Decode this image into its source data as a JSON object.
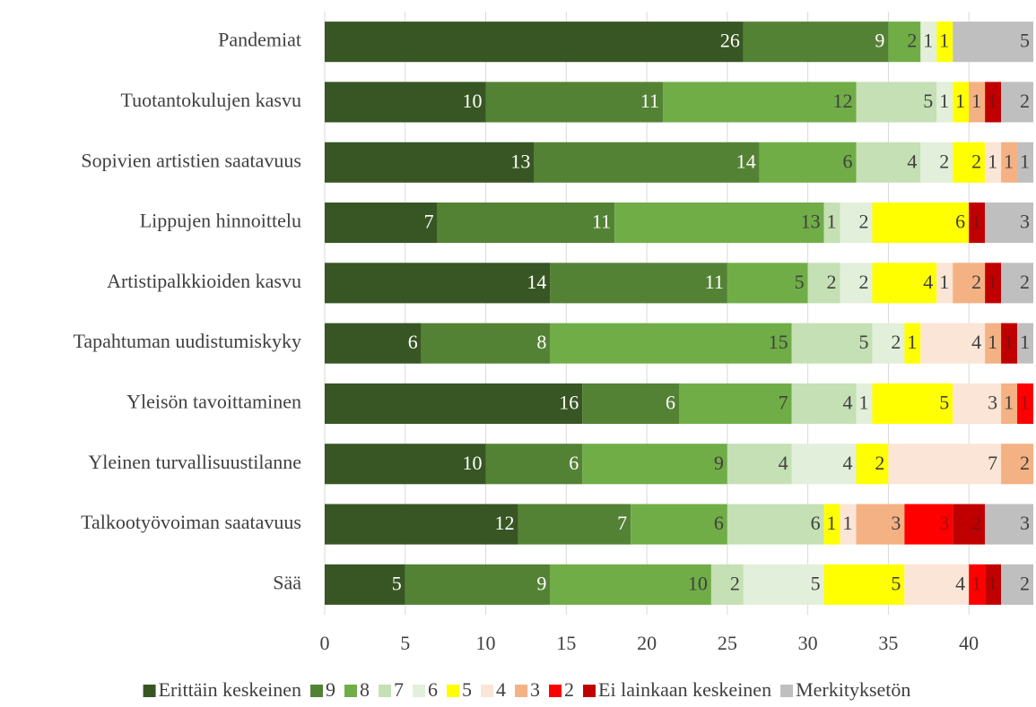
{
  "chart_data": {
    "type": "stacked-barh",
    "categories": [
      "Pandemiat",
      "Tuotantokulujen kasvu",
      "Sopivien artistien saatavuus",
      "Lippujen hinnoittelu",
      "Artistipalkkioiden kasvu",
      "Tapahtuman uudistumiskyky",
      "Yleisön tavoittaminen",
      "Yleinen turvallisuustilanne",
      "Talkootyövoiman saatavuus",
      "Sää"
    ],
    "series": [
      {
        "name": "Erittäin keskeinen",
        "color": "#375623",
        "values": [
          26,
          10,
          13,
          7,
          14,
          6,
          16,
          10,
          12,
          5
        ]
      },
      {
        "name": "9",
        "color": "#548235",
        "values": [
          9,
          11,
          14,
          11,
          11,
          8,
          6,
          6,
          7,
          9
        ]
      },
      {
        "name": "8",
        "color": "#70ad47",
        "values": [
          2,
          12,
          6,
          13,
          5,
          15,
          7,
          9,
          6,
          10
        ]
      },
      {
        "name": "7",
        "color": "#c5e0b4",
        "values": [
          0,
          5,
          4,
          1,
          2,
          5,
          4,
          4,
          6,
          2
        ]
      },
      {
        "name": "6",
        "color": "#e2efda",
        "values": [
          1,
          1,
          2,
          2,
          2,
          2,
          1,
          4,
          0,
          5
        ]
      },
      {
        "name": "5",
        "color": "#ffff00",
        "values": [
          1,
          1,
          2,
          6,
          4,
          1,
          5,
          2,
          1,
          5
        ]
      },
      {
        "name": "4",
        "color": "#fbe5d6",
        "values": [
          0,
          0,
          1,
          0,
          1,
          4,
          3,
          7,
          1,
          4
        ]
      },
      {
        "name": "3",
        "color": "#f4b183",
        "values": [
          0,
          1,
          1,
          0,
          2,
          1,
          1,
          2,
          3,
          0
        ]
      },
      {
        "name": "2",
        "color": "#ff0000",
        "values": [
          0,
          0,
          0,
          0,
          0,
          0,
          1,
          0,
          3,
          1
        ]
      },
      {
        "name": "Ei lainkaan keskeinen",
        "color": "#c00000",
        "values": [
          0,
          1,
          0,
          1,
          1,
          1,
          0,
          0,
          2,
          1
        ]
      },
      {
        "name": "Merkityksetön",
        "color": "#bfbfbf",
        "values": [
          5,
          2,
          1,
          3,
          2,
          1,
          0,
          0,
          3,
          2
        ]
      }
    ],
    "xlim": [
      0,
      44
    ],
    "xticks": [
      0,
      5,
      10,
      15,
      20,
      25,
      30,
      35,
      40
    ],
    "grid": true,
    "legend": "bottom"
  }
}
